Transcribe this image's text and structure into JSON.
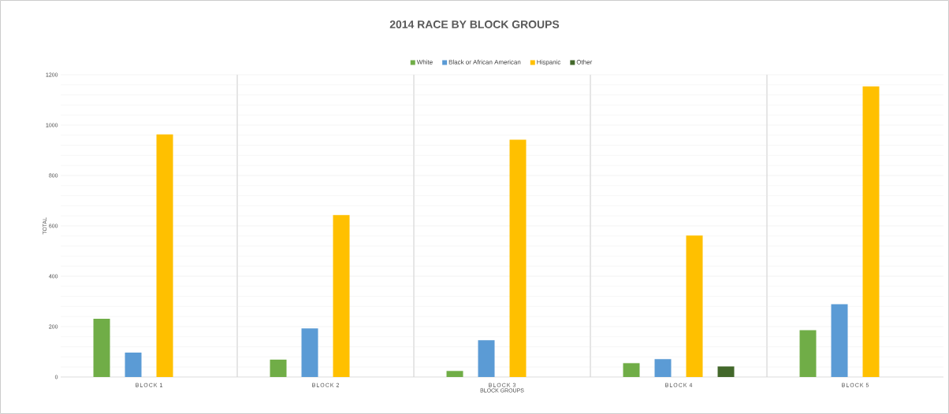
{
  "chart_data": {
    "type": "bar",
    "title": "2014 RACE BY BLOCK GROUPS",
    "xlabel": "BLOCK GROUPS",
    "ylabel": "TOTAL",
    "categories": [
      "BLOCK 1",
      "BLOCK 2",
      "BLOCK 3",
      "BLOCK 4",
      "BLOCK 5"
    ],
    "series": [
      {
        "name": "White",
        "color": "#70ad47",
        "values": [
          231,
          69,
          24,
          55,
          186
        ]
      },
      {
        "name": "Black or African American",
        "color": "#5b9bd5",
        "values": [
          97,
          193,
          146,
          71,
          289
        ]
      },
      {
        "name": "Hispanic",
        "color": "#ffc000",
        "values": [
          963,
          643,
          942,
          562,
          1154
        ]
      },
      {
        "name": "Other",
        "color": "#43682b",
        "values": [
          0,
          0,
          0,
          42,
          0
        ]
      }
    ],
    "ylim": [
      0,
      1200
    ],
    "yticks": [
      0,
      200,
      400,
      600,
      800,
      1000,
      1200
    ],
    "grid": true,
    "legend": "top"
  }
}
